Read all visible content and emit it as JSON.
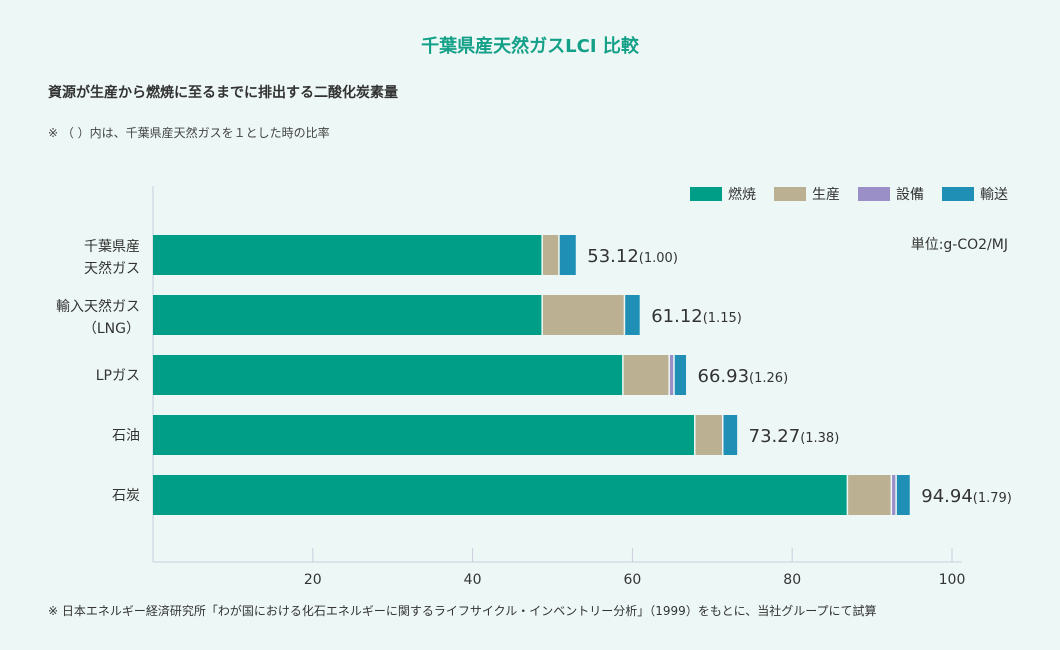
{
  "title": "千葉県産天然ガスLCI 比較",
  "subtitle": "資源が生産から燃焼に至るまでに排出する二酸化炭素量",
  "note": "※ （ ）内は、千葉県産天然ガスを１とした時の比率",
  "footnote": "※ 日本エネルギー経済研究所「わが国における化石エネルギーに関するライフサイクル・インベントリー分析」（1999）をもとに、当社グループにて試算",
  "unit": "単位:g-CO2/MJ",
  "chart_data": {
    "type": "bar",
    "orientation": "horizontal",
    "stacked": true,
    "categories": [
      [
        "千葉県産",
        "天然ガス"
      ],
      [
        "輸入天然ガス",
        "（LNG）"
      ],
      [
        "LPガス"
      ],
      [
        "石油"
      ],
      [
        "石炭"
      ]
    ],
    "series": [
      {
        "name": "燃焼",
        "color": "#009e87",
        "values": [
          48.8,
          48.8,
          58.9,
          67.9,
          87.0
        ]
      },
      {
        "name": "生産",
        "color": "#bcb093",
        "values": [
          2.1,
          10.3,
          5.8,
          3.5,
          5.5
        ]
      },
      {
        "name": "設備",
        "color": "#9b8fc8",
        "values": [
          0,
          0,
          0.6,
          0,
          0.6
        ]
      },
      {
        "name": "輸送",
        "color": "#1f8fb5",
        "values": [
          2.2,
          2.0,
          1.6,
          1.9,
          1.8
        ]
      }
    ],
    "totals": [
      "53.12",
      "61.12",
      "66.93",
      "73.27",
      "94.94"
    ],
    "ratios": [
      "(1.00)",
      "(1.15)",
      "(1.26)",
      "(1.38)",
      "(1.79)"
    ],
    "xlim": [
      0,
      100
    ],
    "xticks": [
      20,
      40,
      60,
      80,
      100
    ],
    "grid": false,
    "legend_position": "top-right"
  }
}
